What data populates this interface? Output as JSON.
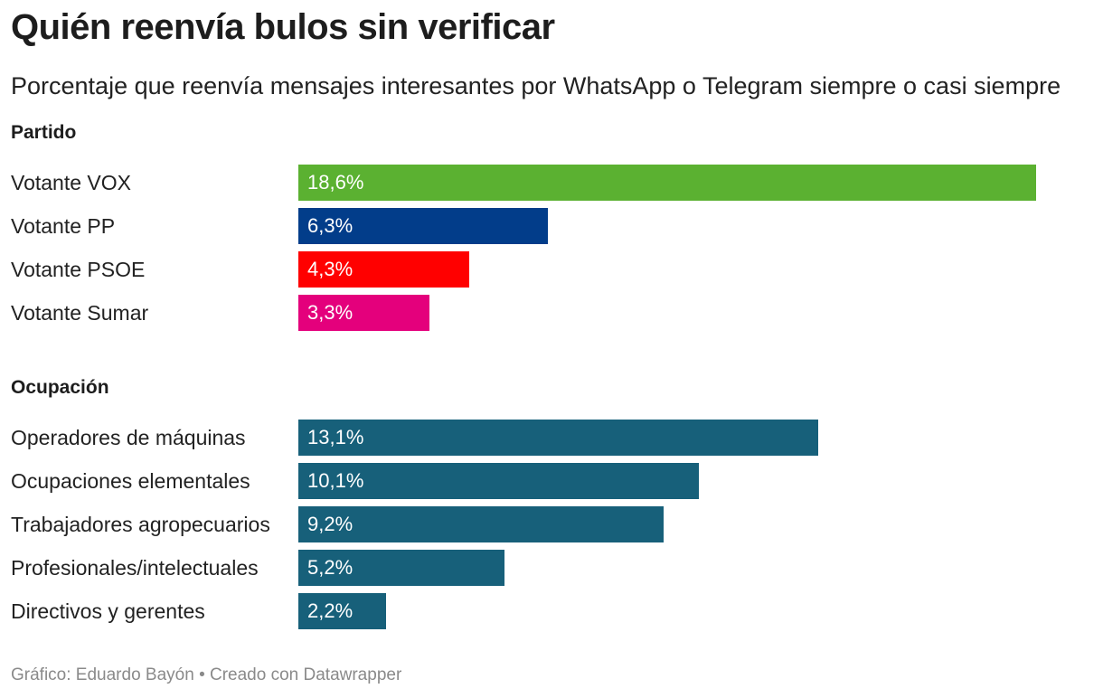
{
  "chart_data": {
    "type": "bar",
    "orientation": "horizontal",
    "title": "Quién reenvía bulos sin verificar",
    "subtitle": "Porcentaje que reenvía mensajes interesantes por WhatsApp o Telegram siempre o casi siempre",
    "xlim": [
      0,
      18.6
    ],
    "grid": false,
    "groups": [
      {
        "name": "Partido",
        "categories": [
          "Votante VOX",
          "Votante PP",
          "Votante PSOE",
          "Votante Sumar"
        ],
        "values": [
          18.6,
          6.3,
          4.3,
          3.3
        ],
        "value_labels": [
          "18,6%",
          "6,3%",
          "4,3%",
          "3,3%"
        ],
        "colors": [
          "#5bb131",
          "#023d8a",
          "#ff0000",
          "#e4007c"
        ]
      },
      {
        "name": "Ocupación",
        "categories": [
          "Operadores de máquinas",
          "Ocupaciones elementales",
          "Trabajadores agropecuarios",
          "Profesionales/intelectuales",
          "Directivos y gerentes"
        ],
        "values": [
          13.1,
          10.1,
          9.2,
          5.2,
          2.2
        ],
        "value_labels": [
          "13,1%",
          "10,1%",
          "9,2%",
          "5,2%",
          "2,2%"
        ],
        "colors": [
          "#17607a",
          "#17607a",
          "#17607a",
          "#17607a",
          "#17607a"
        ]
      }
    ]
  },
  "footer": "Gráfico: Eduardo Bayón • Creado con Datawrapper"
}
